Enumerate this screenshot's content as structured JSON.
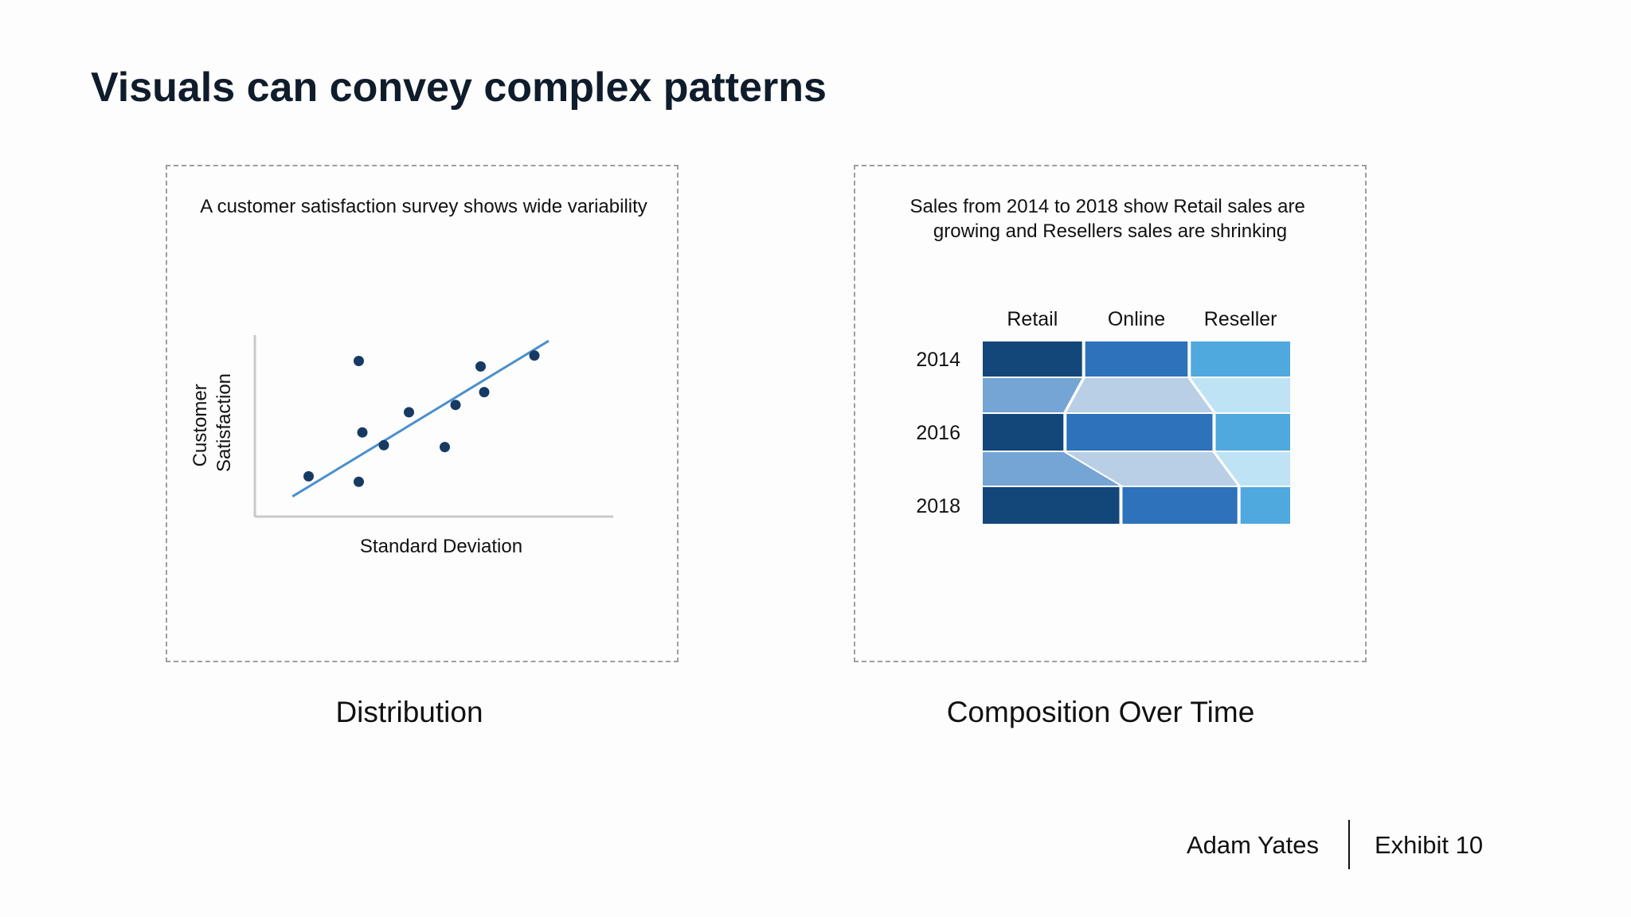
{
  "slide": {
    "title": "Visuals can convey complex patterns",
    "footer": {
      "author": "Adam Yates",
      "exhibit": "Exhibit 10"
    }
  },
  "panels": {
    "left_caption": "Distribution",
    "right_caption": "Composition Over Time"
  },
  "chart_data": [
    {
      "type": "scatter",
      "title": "A customer satisfaction survey shows wide variability",
      "xlabel": "Standard Deviation",
      "ylabel": "Customer Satisfaction",
      "ylabel_lines": [
        "Customer",
        "Satisfaction"
      ],
      "x_ticks": false,
      "y_ticks": false,
      "xlim": [
        0,
        10
      ],
      "ylim": [
        0,
        10
      ],
      "points": [
        {
          "x": 1.5,
          "y": 2.2
        },
        {
          "x": 2.9,
          "y": 8.5
        },
        {
          "x": 3.0,
          "y": 4.6
        },
        {
          "x": 2.9,
          "y": 1.9
        },
        {
          "x": 3.6,
          "y": 3.9
        },
        {
          "x": 4.3,
          "y": 5.7
        },
        {
          "x": 5.3,
          "y": 3.8
        },
        {
          "x": 5.6,
          "y": 6.1
        },
        {
          "x": 6.3,
          "y": 8.2
        },
        {
          "x": 6.4,
          "y": 6.8
        },
        {
          "x": 7.8,
          "y": 8.8
        }
      ],
      "trendline": {
        "x": [
          1.05,
          8.2
        ],
        "y": [
          1.1,
          9.6
        ]
      },
      "colors": {
        "points": "#173a63",
        "trendline": "#4a90cc",
        "axes": "#c9c9c9"
      }
    },
    {
      "type": "marimekko",
      "title": "Sales from 2014 to 2018 show Retail sales are growing and Resellers sales are shrinking",
      "title_lines": [
        "Sales from 2014 to 2018 show Retail sales are",
        "growing and Resellers sales are shrinking"
      ],
      "categories": [
        "2014",
        "2016",
        "2018"
      ],
      "series": [
        {
          "name": "Retail",
          "values": [
            33,
            27,
            45
          ],
          "color": "#134679",
          "flow_color": "#74a5d4"
        },
        {
          "name": "Online",
          "values": [
            34,
            48,
            38
          ],
          "color": "#2d72bb",
          "flow_color": "#b8cfe5"
        },
        {
          "name": "Reseller",
          "values": [
            33,
            25,
            17
          ],
          "color": "#4fa8de",
          "flow_color": "#bee3f5"
        }
      ]
    }
  ]
}
